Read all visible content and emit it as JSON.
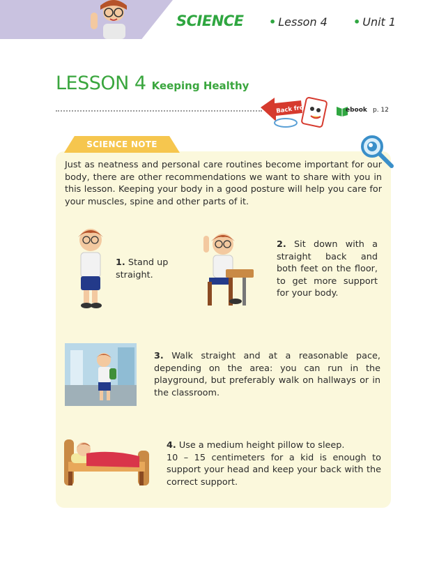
{
  "header": {
    "subject": "SCIENCE",
    "lesson": "Lesson 4",
    "unit": "Unit 1",
    "bullet": "•"
  },
  "title": {
    "lesson_number": "LESSON 4",
    "lesson_name": "Keeping Healthy"
  },
  "back_from_label": "Back from",
  "mbook": {
    "label": "ebook",
    "page": "p. 12"
  },
  "science_note": {
    "tab_label": "SCIENCE NOTE",
    "intro": "Just as neatness and personal care routines become important for our body, there are other recommendations we want to share with you in this lesson. Keeping your body in a good posture will help you care for your muscles, spine and other parts of it."
  },
  "items": [
    {
      "number": "1.",
      "text": " Stand up straight."
    },
    {
      "number": "2.",
      "text": " Sit down with a straight back and both feet on the floor, to get more support for your body."
    },
    {
      "number": "3.",
      "text": " Walk straight and at a reasonable pace, depending on the area: you can run in the playground, but preferably walk on hallways or in the classroom."
    },
    {
      "number": "4.",
      "text": " Use a medium height pillow to sleep.",
      "extra": "10 – 15 centimeters for a kid is enough to support your head and keep your back with the correct support."
    }
  ],
  "colors": {
    "accent_green": "#2fa640",
    "header_band": "#c9c2e0",
    "note_panel": "#fbf8dc",
    "note_tab": "#f6c64e"
  }
}
